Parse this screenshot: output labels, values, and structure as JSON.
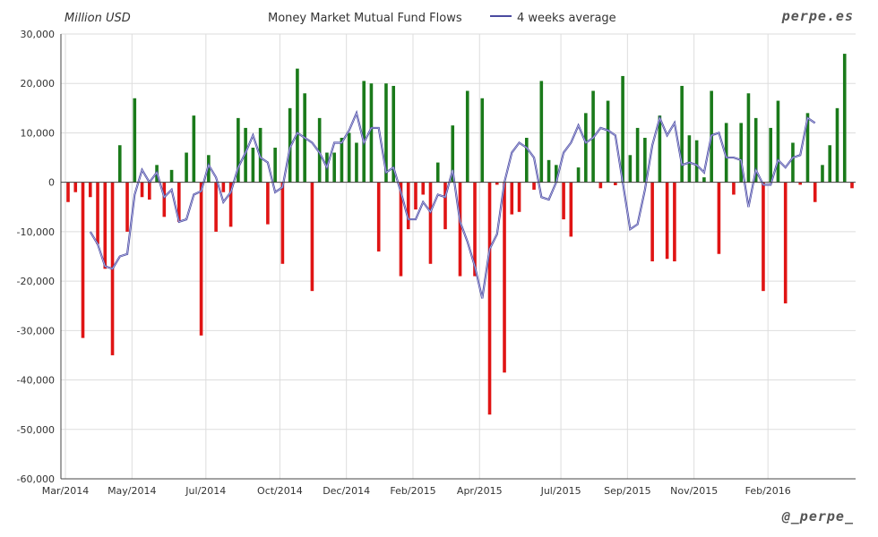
{
  "chart_data": {
    "type": "bar",
    "title": "Money Market Mutual Fund Flows",
    "unit_label": "Million USD",
    "watermark_top": "perpe.es",
    "watermark_bottom": "@_perpe_",
    "ylim": [
      -60000,
      30000
    ],
    "y_ticks": [
      "30,000",
      "20,000",
      "10,000",
      "0",
      "-10,000",
      "-20,000",
      "-30,000",
      "-40,000",
      "-50,000",
      "-60,000"
    ],
    "x_ticks": [
      "Mar/2014",
      "May/2014",
      "Jul/2014",
      "Oct/2014",
      "Dec/2014",
      "Feb/2015",
      "Apr/2015",
      "Jul/2015",
      "Sep/2015",
      "Nov/2015",
      "Feb/2016"
    ],
    "grid": true,
    "legend_position": "top-center",
    "colors": {
      "positive": "#1a7a1a",
      "negative": "#e01414",
      "line": "#4a4aa0",
      "grid": "#dddddd"
    },
    "series": [
      {
        "type": "bar",
        "values": [
          -4000,
          -2000,
          -31500,
          -3000,
          -12500,
          -17500,
          -35000,
          7500,
          -10000,
          17000,
          -3000,
          -3500,
          3500,
          -7000,
          2500,
          -8000,
          6000,
          13500,
          -31000,
          5500,
          -10000,
          -2000,
          -9000,
          13000,
          11000,
          7000,
          11000,
          -8500,
          7000,
          -16500,
          15000,
          23000,
          18000,
          -22000,
          13000,
          6000,
          6000,
          9000,
          10000,
          8000,
          20500,
          20000,
          -14000,
          20000,
          19500,
          -19000,
          -9500,
          -5500,
          -2500,
          -16500,
          4000,
          -9500,
          11500,
          -19000,
          18500,
          -19000,
          17000,
          -47000,
          -500,
          -38500,
          -6500,
          -6000,
          9000,
          -1500,
          20500,
          4500,
          3500,
          -7500,
          -11000,
          3000,
          14000,
          18500,
          -1200,
          16500,
          -600,
          21500,
          5500,
          11000,
          9000,
          -16000,
          13500,
          -15500,
          -16000,
          19500,
          9500,
          8500,
          1000,
          18500,
          -14500,
          12000,
          -2500,
          12000,
          18000,
          13000,
          -22000,
          11000,
          16500,
          -24500,
          8000,
          -500,
          14000,
          -4000,
          3500,
          7500,
          15000,
          26000,
          -1200
        ]
      },
      {
        "type": "line",
        "name": "4 weeks average",
        "start_index": 3,
        "values": [
          -10000,
          -12500,
          -17000,
          -17500,
          -15000,
          -14500,
          -2500,
          2500,
          0,
          2000,
          -3000,
          -1500,
          -8000,
          -7500,
          -2500,
          -1800,
          3500,
          1000,
          -4000,
          -2000,
          3000,
          6000,
          9500,
          5000,
          4000,
          -2000,
          -1000,
          7000,
          10000,
          9000,
          8000,
          6000,
          3000,
          8000,
          8000,
          10500,
          14000,
          8000,
          11000,
          11000,
          2000,
          3000,
          -2000,
          -7500,
          -7500,
          -4000,
          -6000,
          -2500,
          -3000,
          2500,
          -8000,
          -12000,
          -17000,
          -23500,
          -13500,
          -10500,
          0,
          6000,
          8000,
          7000,
          5000,
          -3000,
          -3500,
          0,
          6000,
          8000,
          11500,
          8000,
          9000,
          11000,
          10500,
          9500,
          0,
          -9500,
          -8500,
          -1500,
          7500,
          13000,
          9500,
          12000,
          3500,
          4000,
          3500,
          2000,
          9500,
          10000,
          5000,
          5000,
          4500,
          -5000,
          2500,
          -500,
          -500,
          4500,
          3000,
          5000,
          5500,
          13000,
          12000
        ]
      }
    ]
  }
}
